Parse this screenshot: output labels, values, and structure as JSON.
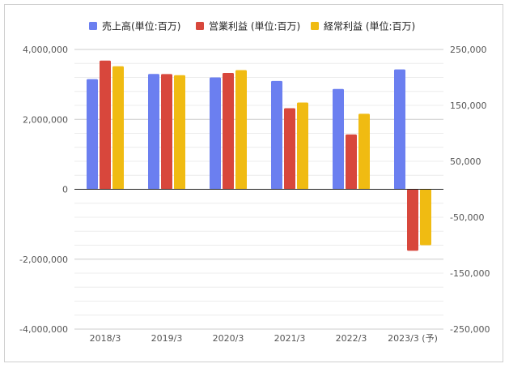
{
  "chart_data": {
    "type": "bar",
    "categories": [
      "2018/3",
      "2019/3",
      "2020/3",
      "2021/3",
      "2022/3",
      "2023/3 (予)"
    ],
    "series": [
      {
        "name": "売上高(単位:百万)",
        "axis": "left",
        "color": "#6b7ff0",
        "values": [
          3150000,
          3300000,
          3200000,
          3100000,
          2870000,
          3430000
        ]
      },
      {
        "name": "営業利益 (単位:百万)",
        "axis": "right",
        "color": "#d8473c",
        "values": [
          230000,
          206000,
          208000,
          145000,
          98000,
          -110000
        ]
      },
      {
        "name": "経常利益 (単位:百万)",
        "axis": "right",
        "color": "#f0bb12",
        "values": [
          220000,
          204000,
          213000,
          155000,
          135000,
          -100000
        ]
      }
    ],
    "left_axis": {
      "ylim": [
        -4000000,
        4000000
      ],
      "ticks": [
        4000000,
        2000000,
        0,
        -2000000,
        -4000000
      ],
      "tick_labels": [
        "4,000,000",
        "2,000,000",
        "0",
        "-2,000,000",
        "-4,000,000"
      ]
    },
    "right_axis": {
      "ylim": [
        -250000,
        250000
      ],
      "ticks": [
        250000,
        150000,
        50000,
        -50000,
        -150000,
        -250000
      ],
      "tick_labels": [
        "250,000",
        "150,000",
        "50,000",
        "-50,000",
        "-150,000",
        "-250,000"
      ]
    },
    "legend_position": "top",
    "grid": true
  }
}
